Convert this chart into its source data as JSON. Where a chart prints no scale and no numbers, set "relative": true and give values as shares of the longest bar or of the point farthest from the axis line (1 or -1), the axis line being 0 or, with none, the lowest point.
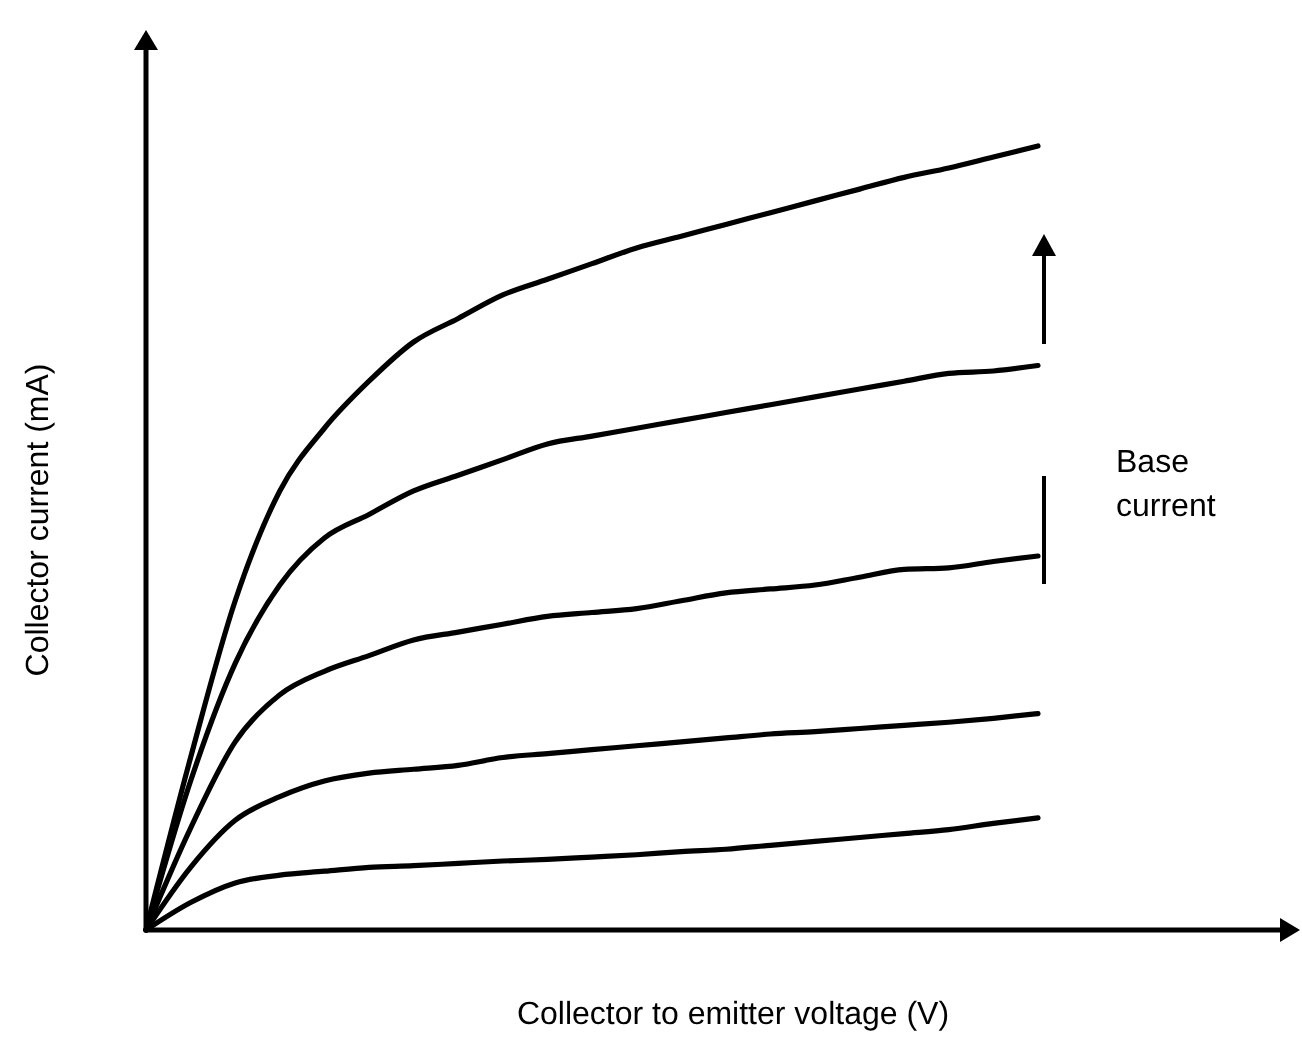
{
  "chart_data": {
    "type": "line",
    "relative": true,
    "xlabel": "Collector to emitter voltage (V)",
    "ylabel": "Collector current (mA)",
    "annotations": [
      "Base current"
    ],
    "categories": [
      null,
      null,
      null,
      null,
      null,
      null,
      null,
      null,
      null,
      null,
      null,
      null,
      null,
      null,
      null,
      null,
      null,
      null,
      null,
      null,
      null,
      null,
      null,
      null,
      null,
      null
    ],
    "series": [
      {
        "color": "#000000",
        "values": [
          0,
          0.22,
          0.42,
          0.56,
          0.64,
          0.7,
          0.75,
          0.78,
          0.81,
          0.83,
          0.85,
          0.87,
          0.885,
          0.9,
          0.915,
          0.93,
          0.945,
          0.96,
          0.972,
          0.986,
          1,
          null,
          null,
          null,
          null,
          null
        ]
      },
      {
        "color": "#000000",
        "values": [
          0,
          0.19,
          0.34,
          0.44,
          0.5,
          0.53,
          0.56,
          0.58,
          0.6,
          0.62,
          0.63,
          0.64,
          0.65,
          0.66,
          0.67,
          0.68,
          0.69,
          0.7,
          0.71,
          0.713,
          0.72,
          null,
          null,
          null,
          null,
          null
        ]
      },
      {
        "color": "#000000",
        "values": [
          0,
          0.13,
          0.24,
          0.3,
          0.33,
          0.35,
          0.37,
          0.38,
          0.39,
          0.4,
          0.405,
          0.41,
          0.42,
          0.43,
          0.435,
          0.44,
          0.45,
          0.46,
          0.462,
          0.47,
          0.477,
          null,
          null,
          null,
          null,
          null
        ]
      },
      {
        "color": "#000000",
        "values": [
          0,
          0.08,
          0.14,
          0.17,
          0.19,
          0.2,
          0.205,
          0.21,
          0.22,
          0.225,
          0.23,
          0.235,
          0.24,
          0.245,
          0.25,
          0.253,
          0.257,
          0.261,
          0.265,
          0.27,
          0.276,
          null,
          null,
          null,
          null,
          null
        ]
      },
      {
        "color": "#000000",
        "values": [
          0,
          0.035,
          0.06,
          0.07,
          0.075,
          0.08,
          0.082,
          0.085,
          0.088,
          0.09,
          0.093,
          0.096,
          0.1,
          0.103,
          0.108,
          0.113,
          0.118,
          0.123,
          0.128,
          0.136,
          0.143,
          null,
          null,
          null,
          null,
          null
        ]
      }
    ]
  }
}
